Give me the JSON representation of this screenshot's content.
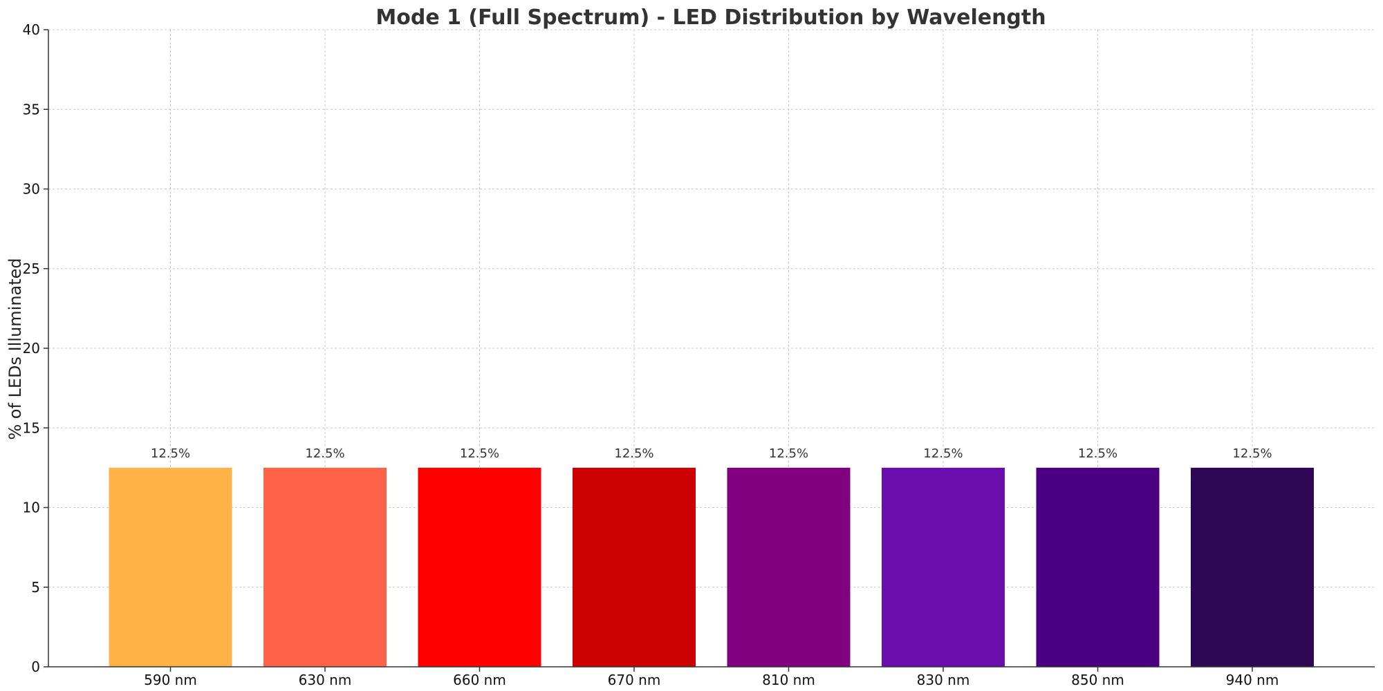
{
  "chart_data": {
    "type": "bar",
    "title": "Mode 1 (Full Spectrum) - LED Distribution by Wavelength",
    "xlabel": "",
    "ylabel": "% of LEDs Illuminated",
    "categories": [
      "590 nm",
      "630 nm",
      "660 nm",
      "670 nm",
      "810 nm",
      "830 nm",
      "850 nm",
      "940 nm"
    ],
    "values": [
      12.5,
      12.5,
      12.5,
      12.5,
      12.5,
      12.5,
      12.5,
      12.5
    ],
    "value_labels": [
      "12.5%",
      "12.5%",
      "12.5%",
      "12.5%",
      "12.5%",
      "12.5%",
      "12.5%",
      "12.5%"
    ],
    "colors": [
      "#ffb347",
      "#ff6347",
      "#ff0000",
      "#cc0000",
      "#800080",
      "#6a0dad",
      "#4b0082",
      "#2e0854"
    ],
    "ylim": [
      0,
      40
    ],
    "yticks": [
      0,
      5,
      10,
      15,
      20,
      25,
      30,
      35,
      40
    ],
    "grid": true,
    "legend": "none"
  }
}
